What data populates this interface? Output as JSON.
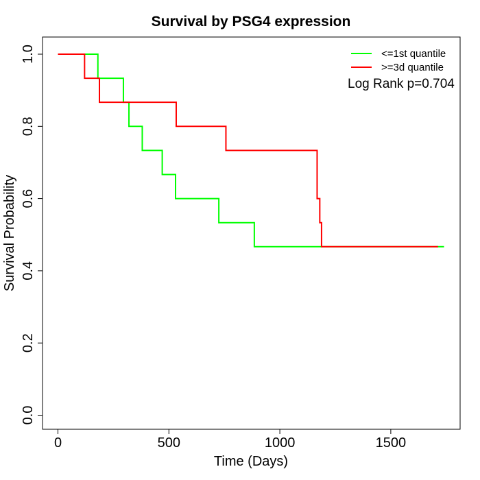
{
  "window": {
    "title": "Survival by PSG4 expression"
  },
  "chart_data": {
    "type": "line",
    "subtype": "kaplan-meier-step",
    "title": "Survival by PSG4 expression",
    "xlabel": "Time (Days)",
    "ylabel": "Survival Probability",
    "xlim": [
      0,
      1740
    ],
    "ylim": [
      0.0,
      1.0
    ],
    "grid": false,
    "legend_position": "top-right",
    "annotation": "Log Rank p=0.704",
    "x_ticks": [
      {
        "value": 0,
        "label": "0"
      },
      {
        "value": 500,
        "label": "500"
      },
      {
        "value": 1000,
        "label": "1000"
      },
      {
        "value": 1500,
        "label": "1500"
      }
    ],
    "y_ticks": [
      {
        "value": 0.0,
        "label": "0.0"
      },
      {
        "value": 0.2,
        "label": "0.2"
      },
      {
        "value": 0.4,
        "label": "0.4"
      },
      {
        "value": 0.6,
        "label": "0.6"
      },
      {
        "value": 0.8,
        "label": "0.8"
      },
      {
        "value": 1.0,
        "label": "1.0"
      }
    ],
    "series": [
      {
        "name": "<=1st quantile",
        "color": "#00FF00",
        "points": [
          [
            0,
            1.0
          ],
          [
            180,
            0.9333
          ],
          [
            295,
            0.8667
          ],
          [
            320,
            0.8
          ],
          [
            380,
            0.7333
          ],
          [
            470,
            0.6667
          ],
          [
            530,
            0.6
          ],
          [
            725,
            0.5333
          ],
          [
            885,
            0.4667
          ]
        ],
        "end_time": 1740
      },
      {
        "name": ">=3d quantile",
        "color": "#FF0000",
        "points": [
          [
            0,
            1.0
          ],
          [
            120,
            0.9333
          ],
          [
            187,
            0.8667
          ],
          [
            533,
            0.8
          ],
          [
            757,
            0.7333
          ],
          [
            1168,
            0.6
          ],
          [
            1180,
            0.5333
          ],
          [
            1188,
            0.4667
          ]
        ],
        "end_time": 1713
      }
    ]
  }
}
